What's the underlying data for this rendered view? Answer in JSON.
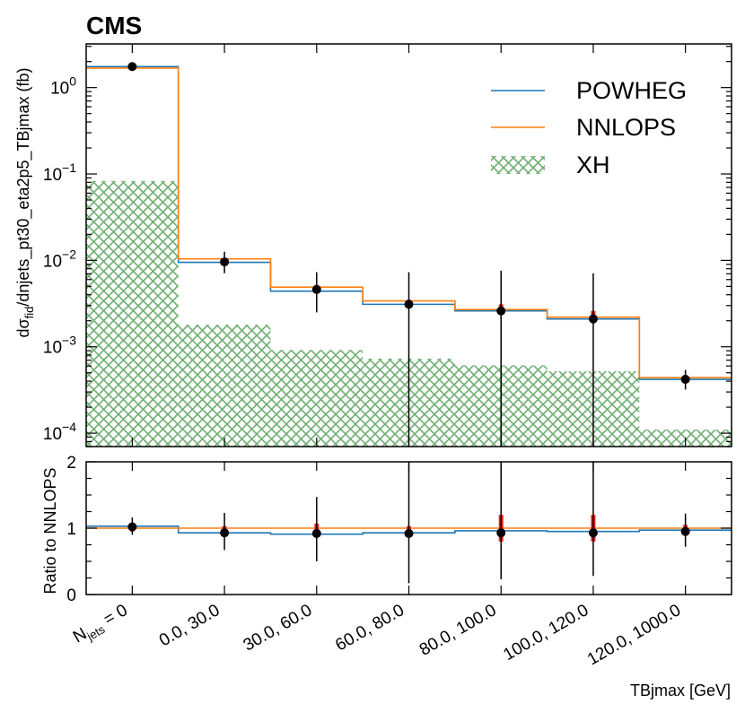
{
  "chart_data": {
    "type": "step-histogram",
    "experiment_label": "CMS",
    "x_axis": {
      "label": "TBjmax [GeV]",
      "bin_labels": [
        "N_jets = 0",
        "0.0, 30.0",
        "30.0, 60.0",
        "60.0, 80.0",
        "80.0, 100.0",
        "100.0, 120.0",
        "120.0, 1000.0"
      ]
    },
    "main_panel": {
      "ylabel_pre": "dσ",
      "ylabel_sub": "fid",
      "ylabel_post": "/dnjets_pt30_eta2p5_TBjmax (fb)",
      "yscale": "log",
      "ylim": [
        7e-05,
        3.2
      ],
      "y_tick_exponents": [
        0,
        -1,
        -2,
        -3,
        -4
      ],
      "series": [
        {
          "name": "POWHEG",
          "style": "step",
          "color": "#1f77b4",
          "values": [
            1.75,
            0.0095,
            0.0044,
            0.0031,
            0.0026,
            0.0021,
            0.00042
          ]
        },
        {
          "name": "NNLOPS",
          "style": "step",
          "color": "#ff7f0e",
          "values": [
            1.68,
            0.0104,
            0.0049,
            0.0034,
            0.0027,
            0.0022,
            0.00044
          ]
        },
        {
          "name": "XH",
          "style": "hatched-fill",
          "color": "#2e8b3e",
          "values": [
            0.083,
            0.0018,
            0.00092,
            0.00073,
            0.00061,
            0.00052,
            0.00011
          ]
        }
      ],
      "data_points": {
        "values": [
          1.75,
          0.0096,
          0.0046,
          0.0031,
          0.0026,
          0.0021,
          0.00042
        ],
        "err_low": [
          0.08,
          0.0025,
          0.0021,
          0.0031,
          0.0026,
          0.0021,
          0.0001
        ],
        "err_high": [
          0.1,
          0.003,
          0.0027,
          0.0042,
          0.005,
          0.005,
          0.00012
        ],
        "theory_band_low": [
          1.63,
          0.0094,
          0.0044,
          0.0031,
          0.0024,
          0.002,
          0.00041
        ],
        "theory_band_high": [
          1.79,
          0.0107,
          0.0052,
          0.0035,
          0.0031,
          0.0026,
          0.00047
        ]
      },
      "legend": [
        "POWHEG",
        "NNLOPS",
        "XH"
      ],
      "legend_position": "top-right"
    },
    "ratio_panel": {
      "ylabel": "Ratio to NNLOPS",
      "ylim": [
        0,
        2
      ],
      "y_ticks": [
        0,
        1,
        2
      ],
      "powheg_ratio": [
        1.03,
        0.93,
        0.91,
        0.93,
        0.96,
        0.95,
        0.97
      ],
      "nnlops_ratio": [
        1,
        1,
        1,
        1,
        1,
        1,
        1
      ],
      "data_ratio": [
        1.02,
        0.93,
        0.92,
        0.92,
        0.93,
        0.93,
        0.95
      ],
      "data_ratio_err_low": [
        0.12,
        0.26,
        0.42,
        0.75,
        0.7,
        0.65,
        0.23
      ],
      "data_ratio_err_high": [
        0.14,
        0.3,
        0.55,
        1.15,
        1.15,
        1.15,
        0.27
      ],
      "theory_ratio_band_low": [
        0.95,
        0.96,
        0.93,
        0.97,
        0.8,
        0.8,
        0.95
      ],
      "theory_ratio_band_high": [
        1.06,
        1.03,
        1.07,
        1.03,
        1.2,
        1.2,
        1.05
      ]
    }
  }
}
